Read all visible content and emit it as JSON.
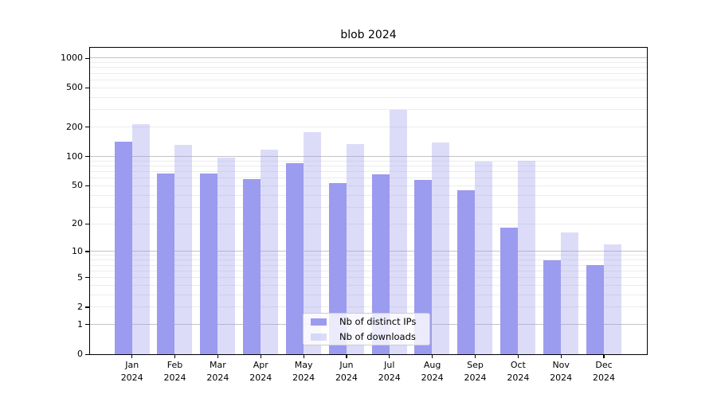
{
  "chart_data": {
    "type": "bar",
    "title": "blob 2024",
    "categories": [
      "Jan",
      "Feb",
      "Mar",
      "Apr",
      "May",
      "Jun",
      "Jul",
      "Aug",
      "Sep",
      "Oct",
      "Nov",
      "Dec"
    ],
    "x_tick_second_line": "2024",
    "series": [
      {
        "name": "Nb of distinct IPs",
        "values": [
          142,
          67,
          67,
          58,
          85,
          53,
          65,
          57,
          45,
          18,
          8,
          7
        ]
      },
      {
        "name": "Nb of downloads",
        "values": [
          213,
          132,
          97,
          118,
          177,
          134,
          300,
          138,
          88,
          90,
          16,
          12
        ]
      }
    ],
    "y_ticks": [
      0,
      1,
      2,
      5,
      10,
      20,
      50,
      100,
      200,
      500,
      1000
    ],
    "y_scale": "log1p",
    "ylim": [
      0,
      1272
    ],
    "grid": true,
    "legend_position": "lower center"
  },
  "colors": {
    "distinct_ips": "#9b9bef",
    "downloads": "rgba(155,155,239,0.35)",
    "grid_major": "#c3c3c3",
    "grid_minor": "#ececec",
    "axis": "#000000",
    "legend_border": "#cccccc",
    "legend_bg": "rgba(255,255,255,0.8)",
    "text": "#000000"
  }
}
